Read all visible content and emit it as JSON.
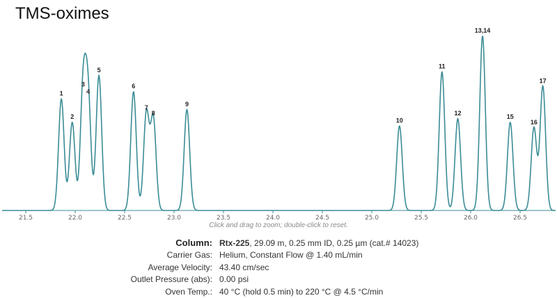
{
  "title": "TMS-oximes",
  "hint": "Click and drag to zoom; double-click to reset.",
  "colors": {
    "trace": "#3a8c95",
    "axis": "#3a8c95"
  },
  "chart_data": {
    "type": "line",
    "title": "TMS-oximes",
    "xlabel": "",
    "ylabel": "",
    "xlim": [
      21.3,
      26.9
    ],
    "ylim": [
      0,
      100
    ],
    "xticks": [
      "21.5",
      "22.0",
      "22.5",
      "23.0",
      "23.5",
      "24.0",
      "24.5",
      "25.0",
      "25.5",
      "26.0",
      "26.5"
    ],
    "xtick_values": [
      21.5,
      22.0,
      22.5,
      23.0,
      23.5,
      24.0,
      24.5,
      25.0,
      25.5,
      26.0,
      26.5
    ],
    "grid": false,
    "peaks": [
      {
        "label": "1",
        "x": 21.86,
        "y": 62
      },
      {
        "label": "2",
        "x": 21.97,
        "y": 49
      },
      {
        "label": "3",
        "x": 22.08,
        "y": 67
      },
      {
        "label": "4",
        "x": 22.13,
        "y": 63
      },
      {
        "label": "5",
        "x": 22.24,
        "y": 75
      },
      {
        "label": "6",
        "x": 22.59,
        "y": 66
      },
      {
        "label": "7",
        "x": 22.72,
        "y": 54
      },
      {
        "label": "8",
        "x": 22.79,
        "y": 51
      },
      {
        "label": "9",
        "x": 23.13,
        "y": 56
      },
      {
        "label": "10",
        "x": 25.28,
        "y": 47
      },
      {
        "label": "11",
        "x": 25.71,
        "y": 77
      },
      {
        "label": "12",
        "x": 25.87,
        "y": 51
      },
      {
        "label": "13,14",
        "x": 26.12,
        "y": 97
      },
      {
        "label": "15",
        "x": 26.4,
        "y": 49
      },
      {
        "label": "16",
        "x": 26.64,
        "y": 46
      },
      {
        "label": "17",
        "x": 26.73,
        "y": 69
      }
    ]
  },
  "info": [
    {
      "label": "Column:",
      "bold": "Rtx-225",
      "value": ", 29.09 m, 0.25 mm ID, 0.25 µm (cat.# 14023)"
    },
    {
      "label": "Carrier Gas:",
      "value": "Helium, Constant Flow @ 1.40 mL/min"
    },
    {
      "label": "Average Velocity:",
      "value": "43.40 cm/sec"
    },
    {
      "label": "Outlet Pressure (abs):",
      "value": "0.00 psi"
    },
    {
      "label": "Oven Temp.:",
      "value": "40 °C (hold 0.5 min) to 220 °C @ 4.5 °C/min"
    }
  ]
}
